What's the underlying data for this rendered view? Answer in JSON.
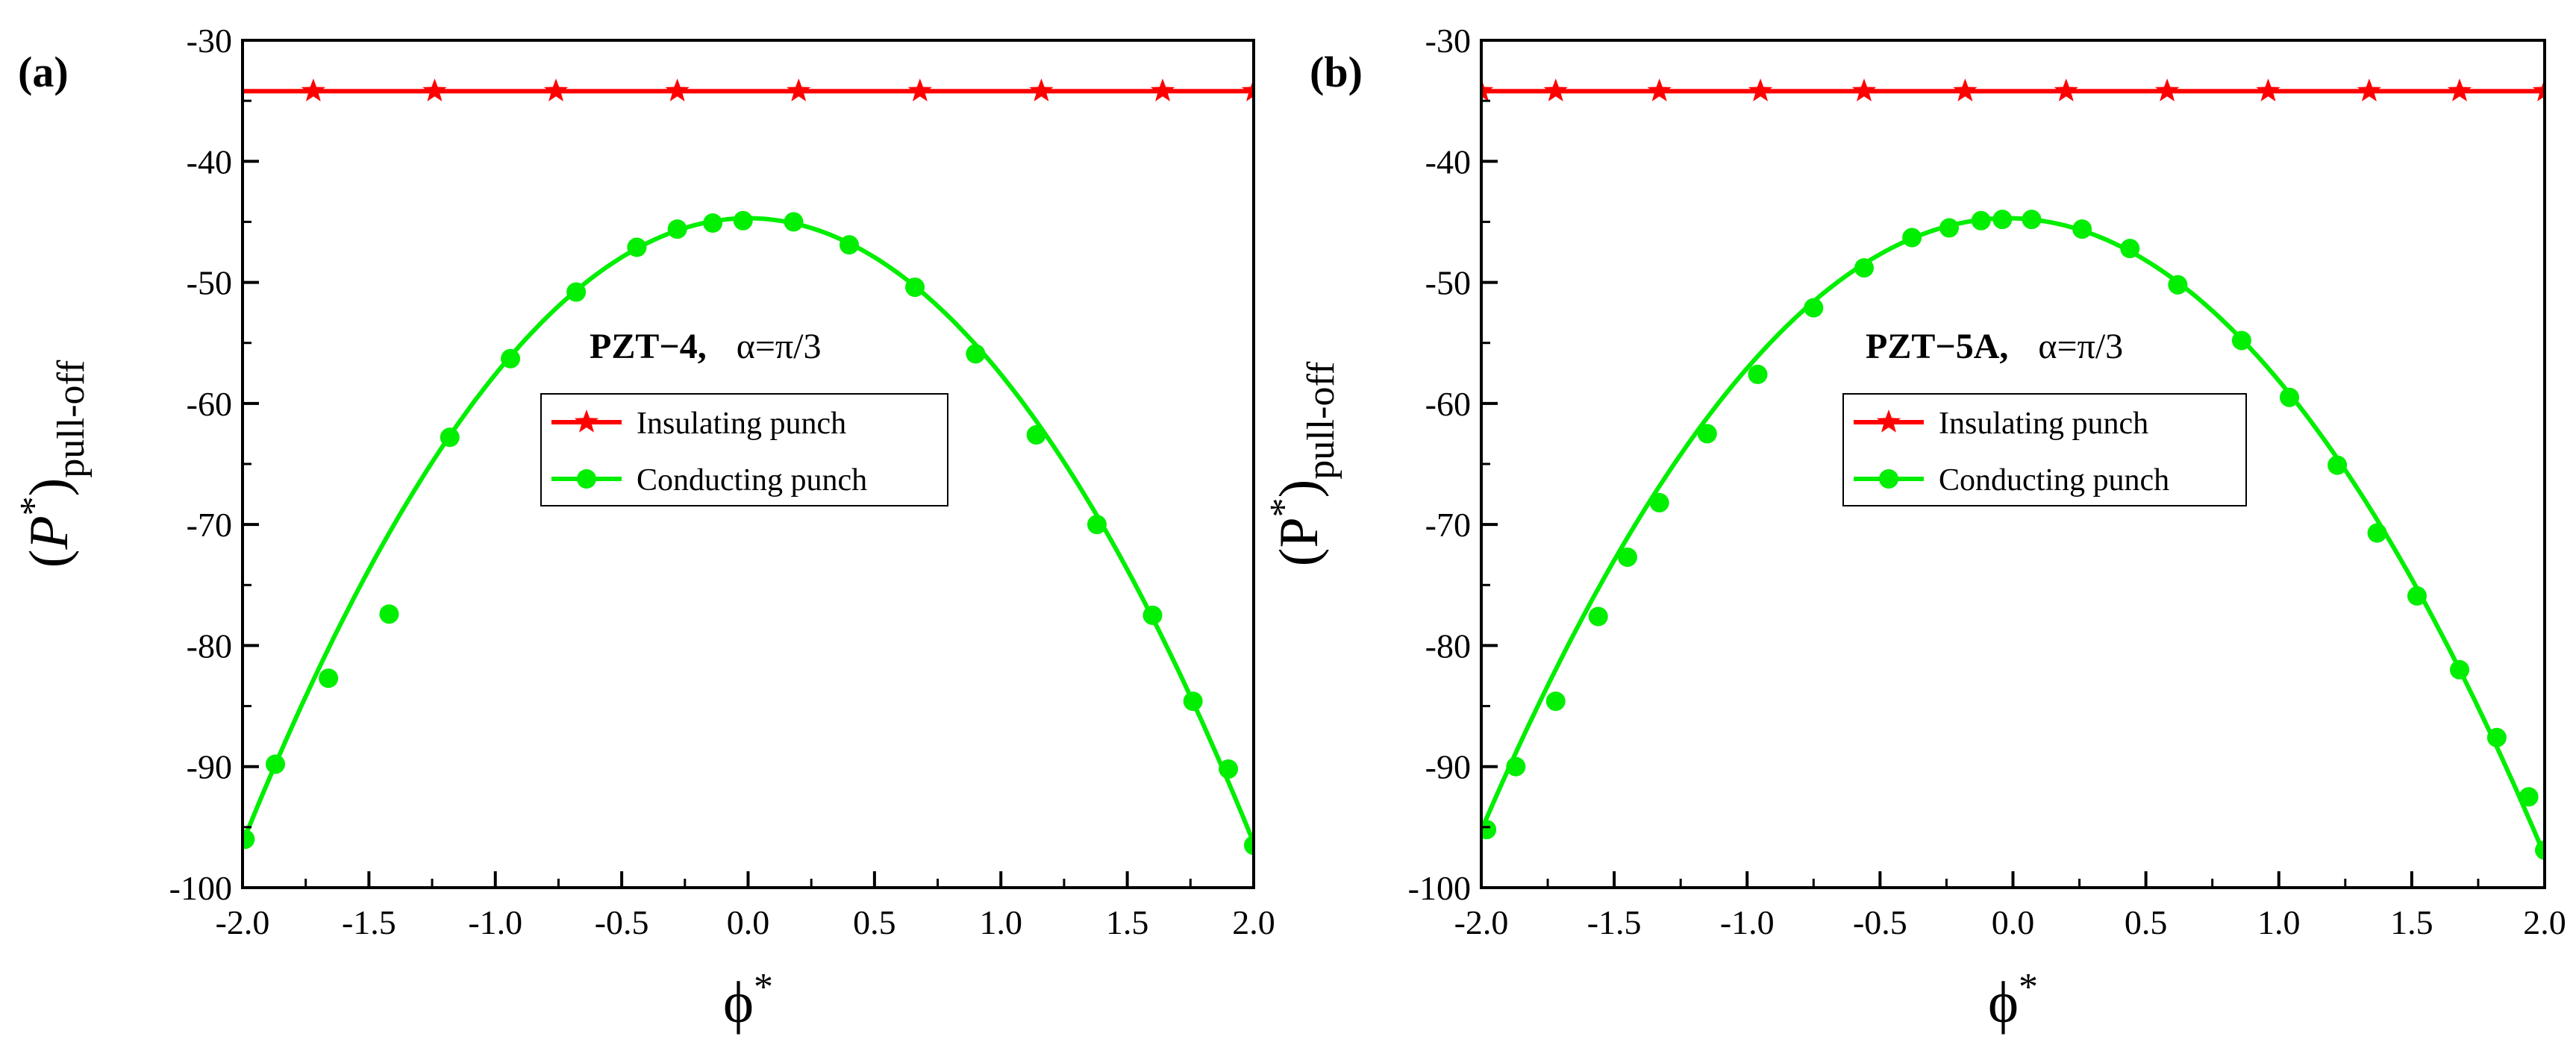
{
  "figure": {
    "panels": [
      "a",
      "b"
    ]
  },
  "colors": {
    "insulating": "#ff0000",
    "conducting": "#00ee00",
    "axis": "#000000"
  },
  "chart_data": [
    {
      "type": "line",
      "panel_label": "(a)",
      "annotation_material": "PZT−4,",
      "annotation_alpha": "α=π/3",
      "xlabel_base": "ϕ",
      "xlabel_sup": "*",
      "ylabel_paren_open": "(",
      "ylabel_base": "P",
      "ylabel_sup": "*",
      "ylabel_paren_close": ")",
      "ylabel_sub": "pull-off",
      "xlim": [
        -2.0,
        2.0
      ],
      "ylim": [
        -100,
        -30
      ],
      "xticks": [
        -2.0,
        -1.5,
        -1.0,
        -0.5,
        0.0,
        0.5,
        1.0,
        1.5,
        2.0
      ],
      "xtick_labels": [
        "-2.0",
        "-1.5",
        "-1.0",
        "-0.5",
        "0.0",
        "0.5",
        "1.0",
        "1.5",
        "2.0"
      ],
      "yticks": [
        -100,
        -90,
        -80,
        -70,
        -60,
        -50,
        -40,
        -30
      ],
      "ytick_labels": [
        "-100",
        "-90",
        "-80",
        "-70",
        "-60",
        "-50",
        "-40",
        "-30"
      ],
      "legend_position": "center",
      "series": [
        {
          "name": "Insulating punch",
          "marker": "star",
          "color": "#ff0000",
          "x": [
            -2.0,
            2.0
          ],
          "y": [
            -34.2,
            -34.2
          ],
          "marker_x": [
            -1.72,
            -1.24,
            -0.76,
            -0.28,
            0.2,
            0.68,
            1.16,
            1.64,
            2.0
          ],
          "marker_y": [
            -34.2,
            -34.2,
            -34.2,
            -34.2,
            -34.2,
            -34.2,
            -34.2,
            -34.2,
            -34.2
          ]
        },
        {
          "name": "Conducting punch",
          "marker": "circle",
          "color": "#00ee00",
          "curve": {
            "vertex_x": 0.0,
            "vertex_y": -44.7,
            "a": 12.9
          },
          "marker_x": [
            -1.99,
            -1.87,
            -1.66,
            -1.42,
            -1.18,
            -0.94,
            -0.68,
            -0.44,
            -0.28,
            -0.14,
            -0.02,
            0.18,
            0.4,
            0.66,
            0.9,
            1.14,
            1.38,
            1.6,
            1.76,
            1.9,
            2.0
          ],
          "marker_y": [
            -96.0,
            -89.8,
            -82.7,
            -77.4,
            -62.8,
            -56.3,
            -50.8,
            -47.1,
            -45.6,
            -45.1,
            -44.9,
            -45.0,
            -46.9,
            -50.4,
            -55.9,
            -62.6,
            -70.0,
            -77.5,
            -84.6,
            -90.2,
            -96.5
          ]
        }
      ]
    },
    {
      "type": "line",
      "panel_label": "(b)",
      "annotation_material": "PZT−5A,",
      "annotation_alpha": "α=π/3",
      "xlabel_base": "ϕ",
      "xlabel_sup": "*",
      "ylabel_paren_open": "(",
      "ylabel_base": "P",
      "ylabel_sup": "*",
      "ylabel_paren_close": ")",
      "ylabel_sub": "pull-off",
      "xlim": [
        -2.0,
        2.0
      ],
      "ylim": [
        -100,
        -30
      ],
      "xticks": [
        -2.0,
        -1.5,
        -1.0,
        -0.5,
        0.0,
        0.5,
        1.0,
        1.5,
        2.0
      ],
      "xtick_labels": [
        "-2.0",
        "-1.5",
        "-1.0",
        "-0.5",
        "0.0",
        "0.5",
        "1.0",
        "1.5",
        "2.0"
      ],
      "yticks": [
        -100,
        -90,
        -80,
        -70,
        -60,
        -50,
        -40,
        -30
      ],
      "ytick_labels": [
        "-100",
        "-90",
        "-80",
        "-70",
        "-60",
        "-50",
        "-40",
        "-30"
      ],
      "legend_position": "center",
      "series": [
        {
          "name": "Insulating punch",
          "marker": "star",
          "color": "#ff0000",
          "x": [
            -2.0,
            2.0
          ],
          "y": [
            -34.2,
            -34.2
          ],
          "marker_x": [
            -2.0,
            -1.72,
            -1.33,
            -0.95,
            -0.56,
            -0.18,
            0.2,
            0.58,
            0.96,
            1.34,
            1.68,
            2.0
          ],
          "marker_y": [
            -34.2,
            -34.2,
            -34.2,
            -34.2,
            -34.2,
            -34.2,
            -34.2,
            -34.2,
            -34.2,
            -34.2,
            -34.2,
            -34.2
          ]
        },
        {
          "name": "Conducting punch",
          "marker": "circle",
          "color": "#00ee00",
          "curve": {
            "vertex_x": -0.02,
            "vertex_y": -44.7,
            "a": 12.9
          },
          "marker_x": [
            -1.98,
            -1.87,
            -1.72,
            -1.56,
            -1.45,
            -1.33,
            -1.15,
            -0.96,
            -0.75,
            -0.56,
            -0.38,
            -0.24,
            -0.12,
            -0.04,
            0.07,
            0.26,
            0.44,
            0.62,
            0.86,
            1.04,
            1.22,
            1.37,
            1.52,
            1.68,
            1.82,
            1.94,
            2.0
          ],
          "marker_y": [
            -95.2,
            -90.0,
            -84.6,
            -77.6,
            -72.7,
            -68.2,
            -62.5,
            -57.6,
            -52.1,
            -48.8,
            -46.3,
            -45.5,
            -44.9,
            -44.8,
            -44.8,
            -45.6,
            -47.2,
            -50.2,
            -54.8,
            -59.5,
            -65.1,
            -70.7,
            -75.9,
            -82.0,
            -87.6,
            -92.5,
            -96.9
          ]
        }
      ]
    }
  ]
}
